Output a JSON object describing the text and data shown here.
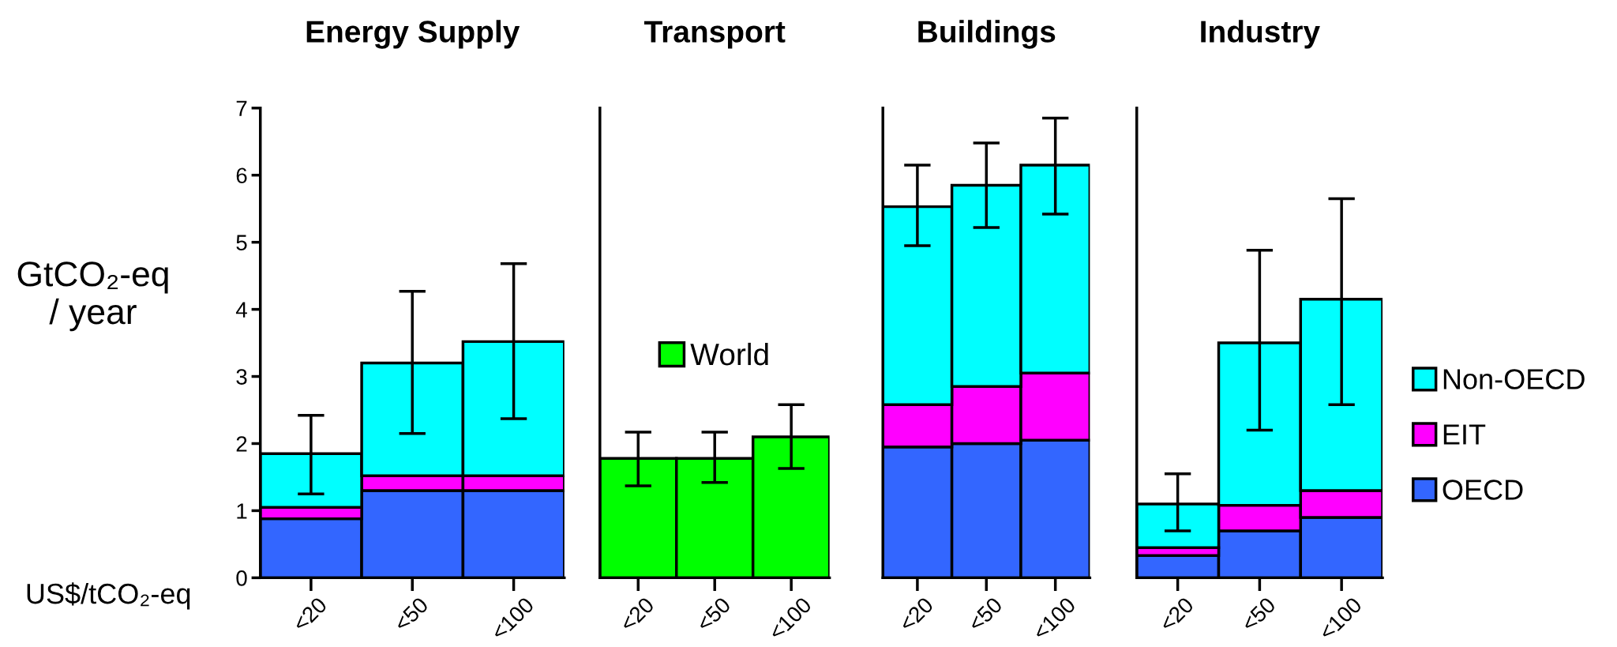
{
  "chart_data": [
    {
      "type": "bar",
      "title": "Energy Supply",
      "ylabel": "GtCO₂-eq\n/ year",
      "xlabel": "US$/tCO₂-eq",
      "categories": [
        "<20",
        "<50",
        "<100"
      ],
      "stacked": true,
      "series": [
        {
          "color": "#3366ff",
          "values": [
            0.88,
            1.3,
            1.3
          ]
        },
        {
          "color": "#ff00ff",
          "values": [
            0.17,
            0.22,
            0.22
          ]
        },
        {
          "color": "#00ffff",
          "values": [
            0.8,
            1.68,
            2.0
          ],
          "errors": [
            [
              1.25,
              2.42
            ],
            [
              2.15,
              4.27
            ],
            [
              2.37,
              4.68
            ]
          ]
        }
      ],
      "ylim": [
        0,
        7
      ],
      "yticks": [
        0,
        1,
        2,
        3,
        4,
        5,
        6,
        7
      ]
    },
    {
      "type": "bar",
      "title": "Transport",
      "categories": [
        "<20",
        "<50",
        "<100"
      ],
      "series": [
        {
          "name": "World",
          "color": "#00ff00",
          "values": [
            1.78,
            1.78,
            2.1
          ],
          "errors": [
            [
              1.37,
              2.17
            ],
            [
              1.42,
              2.17
            ],
            [
              1.63,
              2.58
            ]
          ]
        }
      ],
      "ylim": [
        0,
        7
      ],
      "tick_labels": "x",
      "legend": "center"
    },
    {
      "type": "bar",
      "title": "Buildings",
      "categories": [
        "<20",
        "<50",
        "<100"
      ],
      "stacked": true,
      "series": [
        {
          "color": "#3366ff",
          "values": [
            1.95,
            2.0,
            2.05
          ]
        },
        {
          "color": "#ff00ff",
          "values": [
            0.63,
            0.85,
            1.0
          ]
        },
        {
          "color": "#00ffff",
          "values": [
            2.95,
            3.0,
            3.1
          ],
          "errors": [
            [
              4.95,
              6.15
            ],
            [
              5.22,
              6.48
            ],
            [
              5.42,
              6.85
            ]
          ]
        }
      ],
      "ylim": [
        0,
        7
      ],
      "tick_labels": "x"
    },
    {
      "type": "bar",
      "title": "Industry",
      "categories": [
        "<20",
        "<50",
        "<100"
      ],
      "stacked": true,
      "series": [
        {
          "name": "OECD",
          "color": "#3366ff",
          "values": [
            0.33,
            0.7,
            0.9
          ]
        },
        {
          "name": "EIT",
          "color": "#ff00ff",
          "values": [
            0.12,
            0.38,
            0.4
          ]
        },
        {
          "name": "Non-OECD",
          "color": "#00ffff",
          "values": [
            0.65,
            2.42,
            2.85
          ],
          "errors": [
            [
              0.7,
              1.55
            ],
            [
              2.2,
              4.88
            ],
            [
              2.58,
              5.65
            ]
          ]
        }
      ],
      "ylim": [
        0,
        7
      ],
      "tick_labels": "x",
      "legend": "right"
    }
  ]
}
